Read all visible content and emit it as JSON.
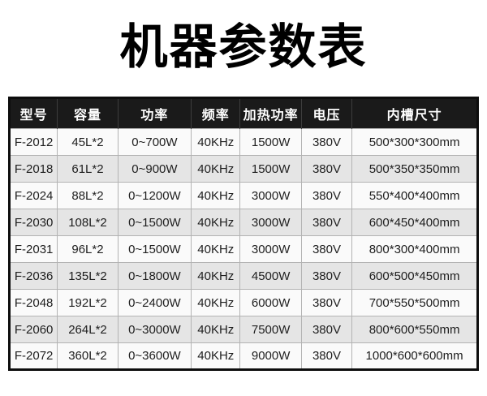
{
  "page": {
    "title": "机器参数表",
    "background": "#ffffff",
    "title_color": "#000000"
  },
  "table": {
    "columns": [
      "型号",
      "容量",
      "功率",
      "频率",
      "加热功率",
      "电压",
      "内槽尺寸"
    ],
    "rows": [
      [
        "F-2012",
        "45L*2",
        "0~700W",
        "40KHz",
        "1500W",
        "380V",
        "500*300*300mm"
      ],
      [
        "F-2018",
        "61L*2",
        "0~900W",
        "40KHz",
        "1500W",
        "380V",
        "500*350*350mm"
      ],
      [
        "F-2024",
        "88L*2",
        "0~1200W",
        "40KHz",
        "3000W",
        "380V",
        "550*400*400mm"
      ],
      [
        "F-2030",
        "108L*2",
        "0~1500W",
        "40KHz",
        "3000W",
        "380V",
        "600*450*400mm"
      ],
      [
        "F-2031",
        "96L*2",
        "0~1500W",
        "40KHz",
        "3000W",
        "380V",
        "800*300*400mm"
      ],
      [
        "F-2036",
        "135L*2",
        "0~1800W",
        "40KHz",
        "4500W",
        "380V",
        "600*500*450mm"
      ],
      [
        "F-2048",
        "192L*2",
        "0~2400W",
        "40KHz",
        "6000W",
        "380V",
        "700*550*500mm"
      ],
      [
        "F-2060",
        "264L*2",
        "0~3000W",
        "40KHz",
        "7500W",
        "380V",
        "800*600*550mm"
      ],
      [
        "F-2072",
        "360L*2",
        "0~3600W",
        "40KHz",
        "9000W",
        "380V",
        "1000*600*600mm"
      ]
    ],
    "colors": {
      "header_bg": "#1a1a1a",
      "header_text": "#ffffff",
      "header_divider": "#3d3d3d",
      "row_odd_bg": "#fafafa",
      "row_even_bg": "#e5e5e5",
      "cell_border": "#b3b3b3",
      "outer_border": "#0d0d0d",
      "body_text": "#1e1e1e"
    }
  }
}
